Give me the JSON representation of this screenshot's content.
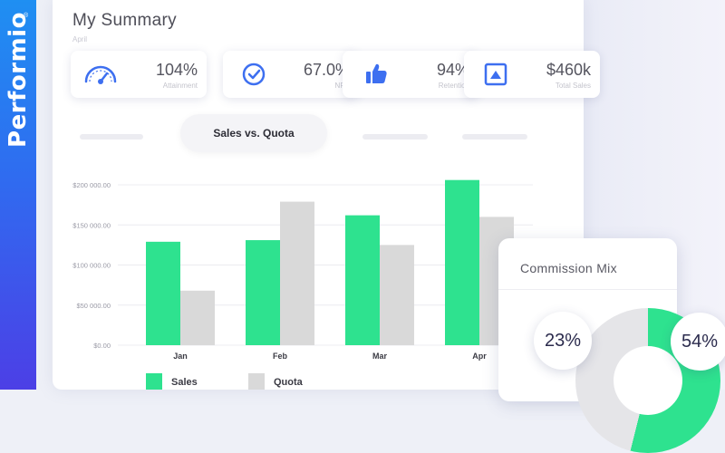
{
  "brand": {
    "name": "Performio",
    "registered": "®",
    "gradient_top": "#1f8ff2",
    "gradient_bottom": "#4c3fe6"
  },
  "header": {
    "title": "My Summary",
    "subtitle": "April"
  },
  "kpis": [
    {
      "icon": "gauge-icon",
      "value": "104%",
      "label": "Attainment"
    },
    {
      "icon": "check-circle-icon",
      "value": "67.0%",
      "label": "NPS"
    },
    {
      "icon": "thumbs-up-icon",
      "value": "94%",
      "label": "Retention"
    },
    {
      "icon": "chart-box-icon",
      "value": "$460k",
      "label": "Total Sales"
    }
  ],
  "tabs": {
    "active_label": "Sales vs. Quota"
  },
  "chart_data": {
    "type": "bar",
    "categories": [
      "Jan",
      "Feb",
      "Mar",
      "Apr"
    ],
    "series": [
      {
        "name": "Sales",
        "values": [
          129000,
          131000,
          162000,
          206000
        ],
        "color": "#2ee28f"
      },
      {
        "name": "Quota",
        "values": [
          68000,
          179000,
          125000,
          160000
        ],
        "color": "#d9d9d9"
      }
    ],
    "ylim": [
      0,
      200000
    ],
    "yticks": [
      0,
      50000,
      100000,
      150000,
      200000
    ],
    "ytick_labels": [
      "$0.00",
      "$50 000.00",
      "$100 000.00",
      "$150 000.00",
      "$200 000.00"
    ],
    "grid": true,
    "legend": "bottom-left"
  },
  "legend": {
    "sales": "Sales",
    "quota": "Quota"
  },
  "commission": {
    "title": "Commission Mix",
    "slices": [
      {
        "label": "23%",
        "value": 23,
        "color": "#e5e5e8"
      },
      {
        "label": "54%",
        "value": 54,
        "color": "#2ee28f"
      }
    ]
  }
}
